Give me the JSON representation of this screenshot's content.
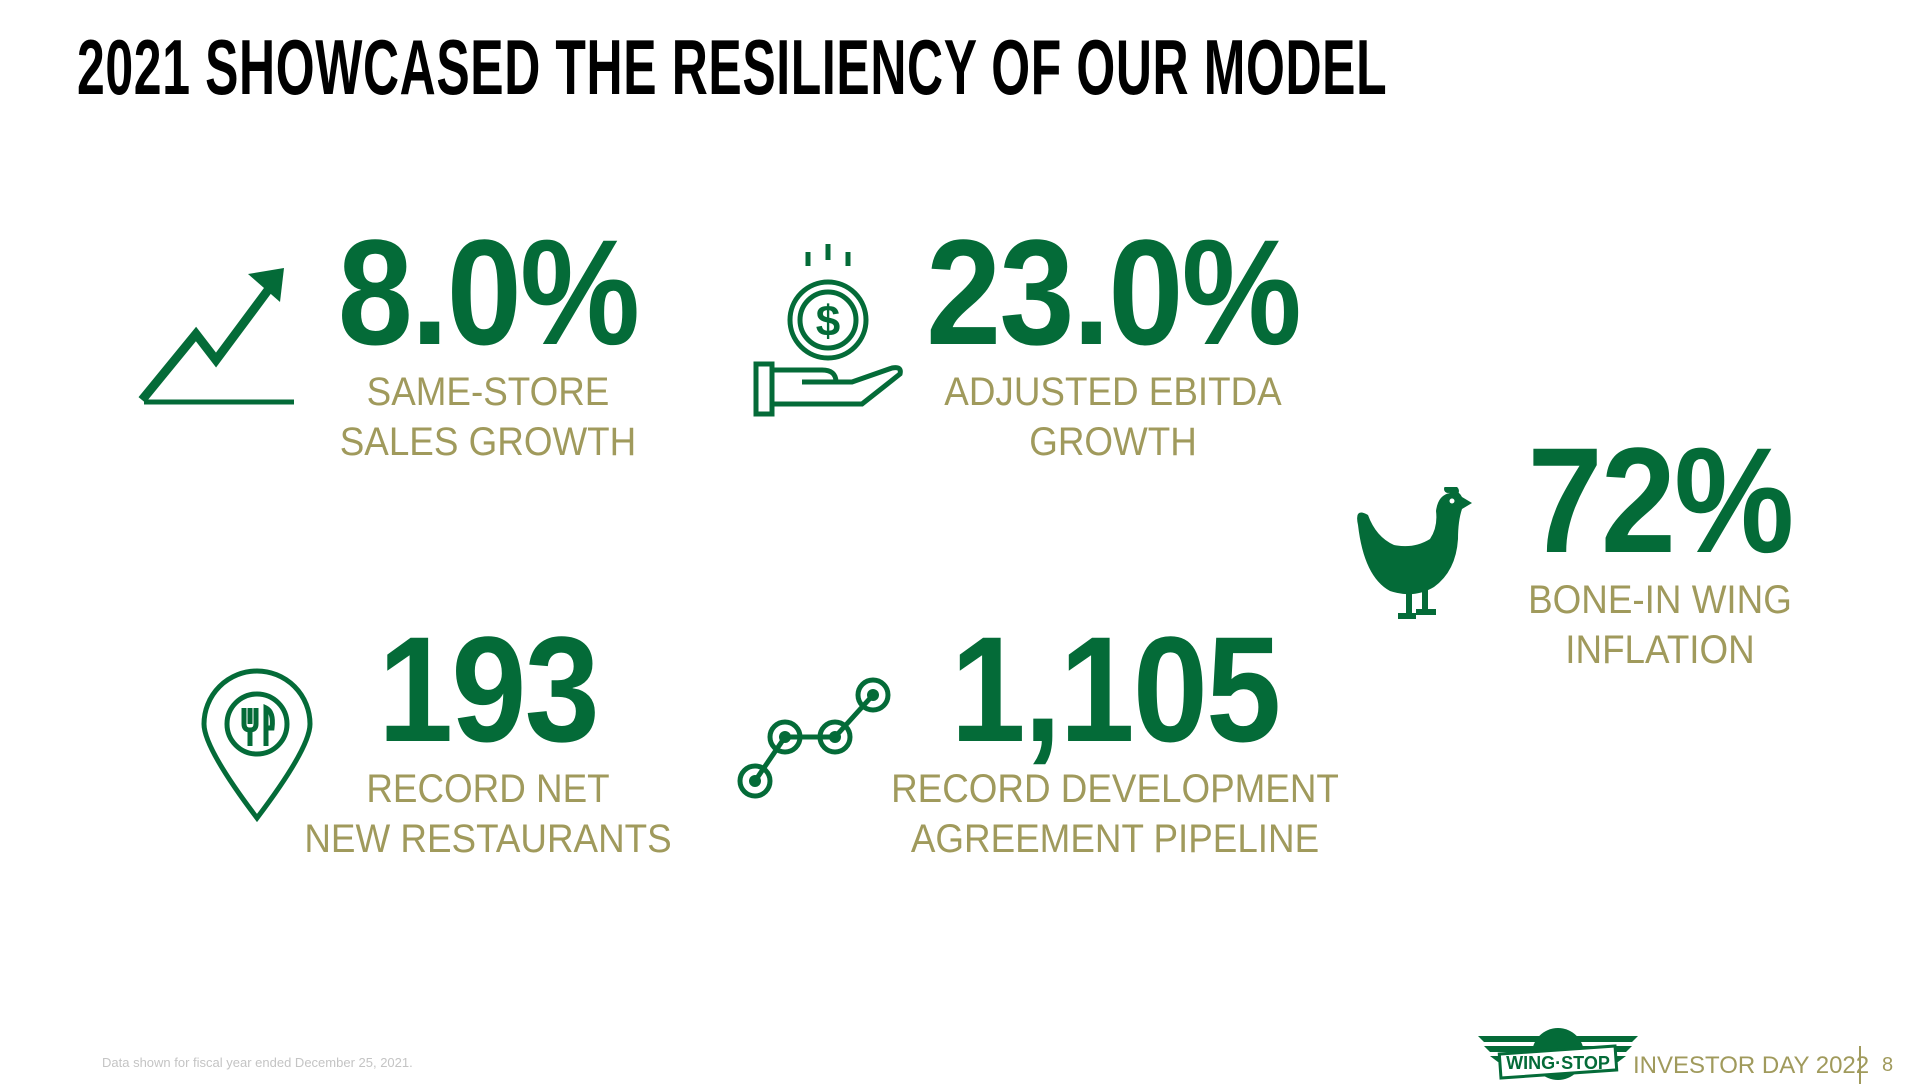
{
  "title": "2021 SHOWCASED THE RESILIENCY OF OUR MODEL",
  "stats": [
    {
      "value": "8.0%",
      "label_line1": "SAME-STORE",
      "label_line2": "SALES GROWTH",
      "icon": "trending-up-chart-icon"
    },
    {
      "value": "23.0%",
      "label_line1": "ADJUSTED EBITDA",
      "label_line2": "GROWTH",
      "icon": "hand-dollar-coin-icon"
    },
    {
      "value": "72%",
      "label_line1": "BONE-IN WING",
      "label_line2": "INFLATION",
      "icon": "chicken-icon"
    },
    {
      "value": "193",
      "label_line1": "RECORD NET",
      "label_line2": "NEW RESTAURANTS",
      "icon": "restaurant-location-pin-icon"
    },
    {
      "value": "1,105",
      "label_line1": "RECORD DEVELOPMENT",
      "label_line2": "AGREEMENT PIPELINE",
      "icon": "connected-nodes-icon"
    }
  ],
  "footer": {
    "note": "Data shown for fiscal year ended December 25, 2021.",
    "logo_text": "WING-STOP",
    "event": "INVESTOR DAY 2022",
    "page_number": "8"
  },
  "colors": {
    "green": "#046b38",
    "gold": "#a09a5c"
  }
}
